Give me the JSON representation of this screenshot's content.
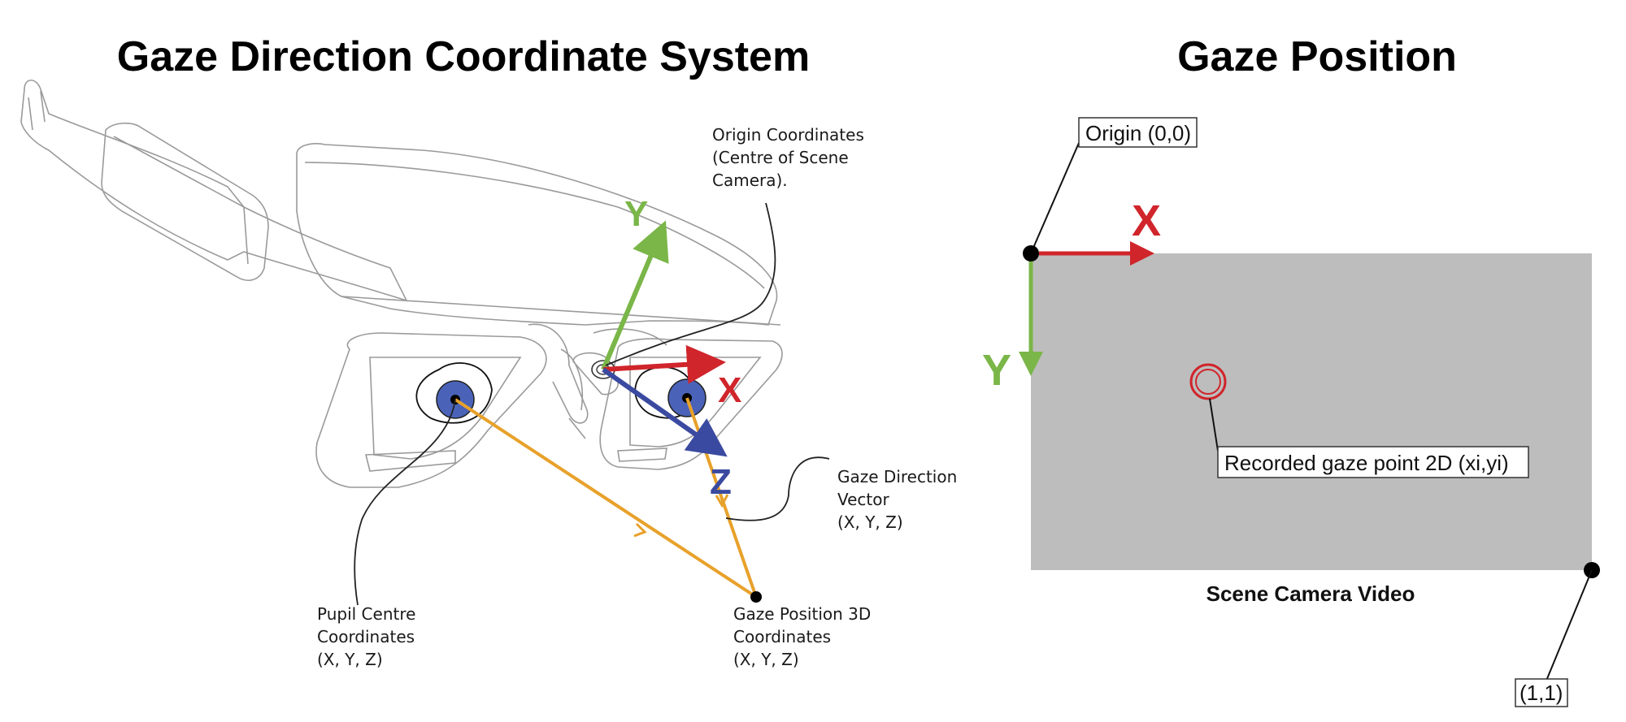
{
  "titles": {
    "left": "Gaze Direction Coordinate System",
    "right": "Gaze Position"
  },
  "left_panel": {
    "axes": {
      "x": "X",
      "y": "Y",
      "z": "Z"
    },
    "labels": {
      "origin": [
        "Origin Coordinates",
        "(Centre of Scene",
        "Camera)."
      ],
      "gaze_direction": [
        "Gaze Direction",
        "Vector",
        "(X, Y, Z)"
      ],
      "pupil_centre": [
        "Pupil Centre",
        "Coordinates",
        "(X, Y, Z)"
      ],
      "gaze_position_3d": [
        "Gaze Position 3D",
        "Coordinates",
        "(X, Y, Z)"
      ]
    },
    "colors": {
      "x_axis": "#d0252b",
      "y_axis": "#7ab648",
      "z_axis": "#3a4aa0",
      "gaze_ray": "#e8a12a",
      "pupil": "#4a63b8"
    }
  },
  "right_panel": {
    "axes": {
      "x": "X",
      "y": "Y"
    },
    "origin_label": "Origin (0,0)",
    "end_label": "(1,1)",
    "gaze_point_label": "Recorded gaze point 2D (xi,yi)",
    "video_label": "Scene Camera Video",
    "colors": {
      "video_area": "#bdbdbd",
      "x_axis": "#d0252b",
      "y_axis": "#7ab648",
      "gaze_point": "#d0252b"
    }
  },
  "icons": [
    "eye-tracking-glasses-drawing"
  ]
}
